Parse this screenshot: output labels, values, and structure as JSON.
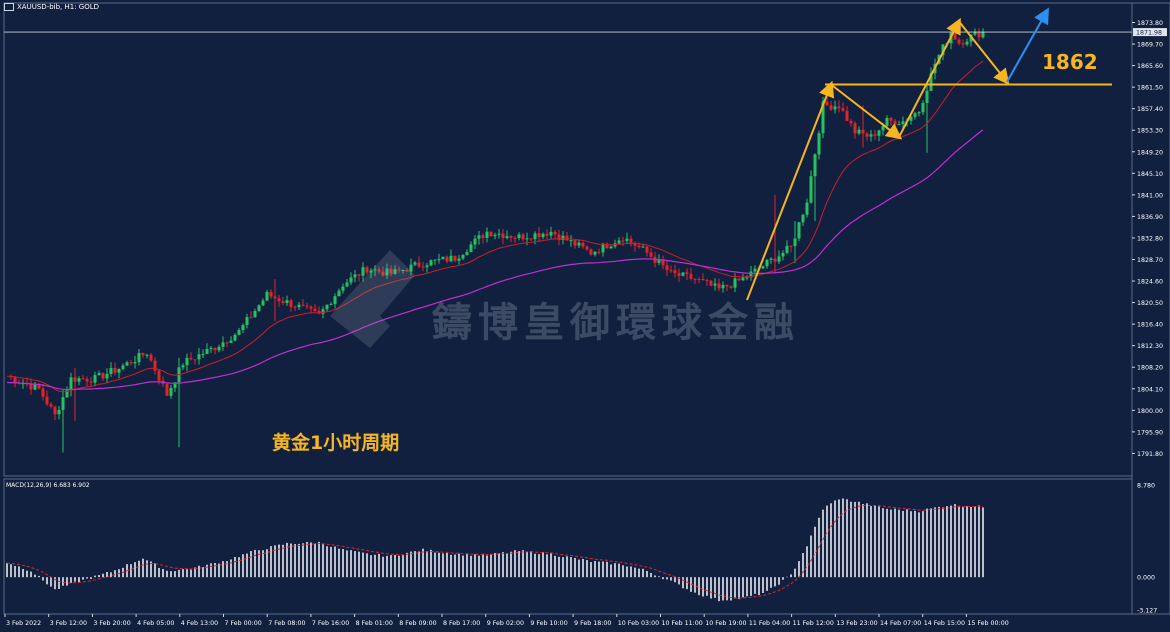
{
  "header": {
    "title": "XAUUSD-bib, H1:  GOLD"
  },
  "annotations": {
    "note": "黄金1小时周期",
    "level_label": "1862"
  },
  "watermark": "鑄博皇御環球金融",
  "macd": {
    "label": "MACD(12,26,9) 6.683 6.902",
    "ticks": [
      "8.780",
      "0.000",
      "-3.127"
    ]
  },
  "colors": {
    "background": "#12203f",
    "bull": "#23c363",
    "bear": "#e0242c",
    "ma_fast": "#cc1e2a",
    "ma_slow": "#c02fcf",
    "arrow": "#f5b622",
    "arrow_blue": "#2f8ff0",
    "level_line": "#f5b622"
  },
  "chart_data": {
    "type": "candlestick",
    "symbol": "XAUUSD-bib",
    "timeframe": "H1",
    "ylim": [
      1787.5,
      1875.8
    ],
    "price_ticks": [
      "1873.80",
      "1869.70",
      "1865.60",
      "1861.50",
      "1857.40",
      "1853.30",
      "1849.20",
      "1845.10",
      "1841.00",
      "1836.90",
      "1832.80",
      "1828.70",
      "1824.60",
      "1820.50",
      "1816.40",
      "1812.30",
      "1808.20",
      "1804.10",
      "1800.00",
      "1795.90",
      "1791.80"
    ],
    "current_price": "1871.98",
    "level": 1862,
    "time_ticks": [
      "3 Feb 2022",
      "3 Feb 12:00",
      "3 Feb 20:00",
      "4 Feb 05:00",
      "4 Feb 13:00",
      "7 Feb 00:00",
      "7 Feb 08:00",
      "7 Feb 16:00",
      "8 Feb 01:00",
      "8 Feb 09:00",
      "8 Feb 17:00",
      "9 Feb 02:00",
      "9 Feb 10:00",
      "9 Feb 18:00",
      "10 Feb 03:00",
      "10 Feb 11:00",
      "10 Feb 19:00",
      "11 Feb 04:00",
      "11 Feb 12:00",
      "13 Feb 23:00",
      "14 Feb 07:00",
      "14 Feb 15:00",
      "15 Feb 00:00"
    ],
    "close_anchors": [
      [
        0,
        1806.5
      ],
      [
        8,
        1804
      ],
      [
        12,
        1799
      ],
      [
        16,
        1806
      ],
      [
        22,
        1806
      ],
      [
        28,
        1808
      ],
      [
        35,
        1811
      ],
      [
        40,
        1803
      ],
      [
        44,
        1809
      ],
      [
        52,
        1812
      ],
      [
        58,
        1815
      ],
      [
        65,
        1822
      ],
      [
        72,
        1820
      ],
      [
        78,
        1818
      ],
      [
        84,
        1824
      ],
      [
        90,
        1827
      ],
      [
        96,
        1826
      ],
      [
        104,
        1828
      ],
      [
        112,
        1829
      ],
      [
        120,
        1834
      ],
      [
        128,
        1833
      ],
      [
        136,
        1834
      ],
      [
        146,
        1830
      ],
      [
        154,
        1833
      ],
      [
        160,
        1830
      ],
      [
        166,
        1826
      ],
      [
        172,
        1825
      ],
      [
        178,
        1823
      ],
      [
        184,
        1825
      ],
      [
        190,
        1828
      ],
      [
        196,
        1831
      ],
      [
        200,
        1840
      ],
      [
        204,
        1858
      ],
      [
        208,
        1858
      ],
      [
        212,
        1853
      ],
      [
        216,
        1852
      ],
      [
        220,
        1855
      ],
      [
        224,
        1855
      ],
      [
        228,
        1857
      ],
      [
        232,
        1866
      ],
      [
        236,
        1872
      ],
      [
        238,
        1870
      ],
      [
        242,
        1871.5
      ],
      [
        244,
        1872
      ]
    ],
    "macd_anchors": [
      [
        0,
        1.4
      ],
      [
        6,
        0.6
      ],
      [
        12,
        -1.2
      ],
      [
        18,
        -0.4
      ],
      [
        26,
        0.5
      ],
      [
        34,
        1.8
      ],
      [
        40,
        0.6
      ],
      [
        46,
        0.8
      ],
      [
        54,
        1.5
      ],
      [
        62,
        2.5
      ],
      [
        70,
        3.2
      ],
      [
        78,
        3.3
      ],
      [
        84,
        2.6
      ],
      [
        90,
        2.2
      ],
      [
        96,
        2.0
      ],
      [
        104,
        2.6
      ],
      [
        112,
        2.2
      ],
      [
        120,
        2.1
      ],
      [
        128,
        2.5
      ],
      [
        136,
        2.2
      ],
      [
        146,
        1.5
      ],
      [
        154,
        1.2
      ],
      [
        160,
        0.6
      ],
      [
        166,
        -0.4
      ],
      [
        172,
        -1.5
      ],
      [
        178,
        -2.2
      ],
      [
        184,
        -2.0
      ],
      [
        190,
        -1.4
      ],
      [
        196,
        0.2
      ],
      [
        200,
        3.0
      ],
      [
        204,
        6.5
      ],
      [
        208,
        7.5
      ],
      [
        212,
        7.2
      ],
      [
        220,
        6.5
      ],
      [
        228,
        6.3
      ],
      [
        236,
        6.9
      ],
      [
        244,
        6.7
      ]
    ]
  }
}
